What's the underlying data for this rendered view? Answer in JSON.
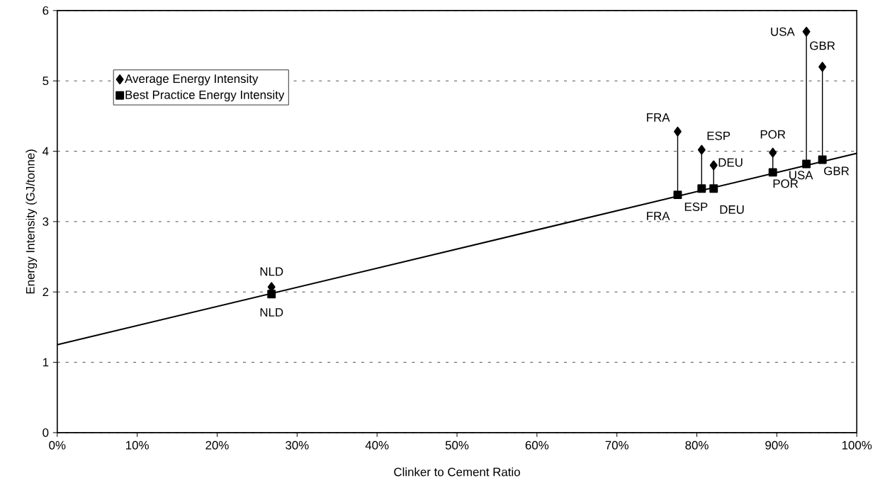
{
  "chart_data": {
    "type": "scatter",
    "xlabel": "Clinker to Cement Ratio",
    "ylabel": "Energy Intensity (GJ/tonne)",
    "xlim": [
      0,
      100
    ],
    "ylim": [
      0,
      6
    ],
    "xticks": [
      {
        "value": 0,
        "label": "0%"
      },
      {
        "value": 10,
        "label": "10%"
      },
      {
        "value": 20,
        "label": "20%"
      },
      {
        "value": 30,
        "label": "30%"
      },
      {
        "value": 40,
        "label": "40%"
      },
      {
        "value": 50,
        "label": "50%"
      },
      {
        "value": 60,
        "label": "60%"
      },
      {
        "value": 70,
        "label": "70%"
      },
      {
        "value": 80,
        "label": "80%"
      },
      {
        "value": 90,
        "label": "90%"
      },
      {
        "value": 100,
        "label": "100%"
      }
    ],
    "yticks": [
      0,
      1,
      2,
      3,
      4,
      5,
      6
    ],
    "grid": "y",
    "legend": "top left",
    "series": [
      {
        "name": "Average Energy Intensity",
        "color": "#000000",
        "marker": "diamond",
        "x": [
          26.8,
          77.6,
          80.6,
          82.1,
          89.5,
          93.7,
          95.7
        ],
        "values": [
          2.07,
          4.28,
          4.02,
          3.8,
          3.98,
          5.7,
          5.2
        ]
      },
      {
        "name": "Best Practice Energy Intensity",
        "color": "#000000",
        "marker": "square",
        "x": [
          26.8,
          77.6,
          80.6,
          82.1,
          89.5,
          93.7,
          95.7
        ],
        "values": [
          1.97,
          3.38,
          3.47,
          3.47,
          3.7,
          3.82,
          3.88
        ],
        "errors": [
          [
            1.97,
            2.07
          ],
          [
            3.38,
            4.28
          ],
          [
            3.47,
            4.02
          ],
          [
            3.47,
            3.8
          ],
          [
            3.7,
            3.98
          ],
          [
            3.82,
            5.7
          ],
          [
            3.88,
            5.2
          ]
        ]
      },
      {
        "type": "line",
        "color": "#000000",
        "marker": "none",
        "x": [
          0,
          100
        ],
        "values": [
          1.25,
          3.97
        ]
      }
    ],
    "annotations": [
      {
        "text": "NLD",
        "x": 26.8,
        "y": 2.07
      },
      {
        "text": "FRA",
        "x": 77.6,
        "y": 4.28
      },
      {
        "text": "ESP",
        "x": 80.6,
        "y": 4.02
      },
      {
        "text": "DEU",
        "x": 82.1,
        "y": 3.8
      },
      {
        "text": "POR",
        "x": 89.5,
        "y": 3.98
      },
      {
        "text": "USA",
        "x": 93.7,
        "y": 5.7
      },
      {
        "text": "GBR",
        "x": 95.7,
        "y": 5.2
      },
      {
        "text": "NLD",
        "x": 26.8,
        "y": 1.97
      },
      {
        "text": "FRA",
        "x": 77.6,
        "y": 3.38
      },
      {
        "text": "ESP",
        "x": 80.6,
        "y": 3.47
      },
      {
        "text": "DEU",
        "x": 82.1,
        "y": 3.47
      },
      {
        "text": "POR",
        "x": 89.5,
        "y": 3.7
      },
      {
        "text": "USA",
        "x": 93.7,
        "y": 3.82
      },
      {
        "text": "GBR",
        "x": 95.7,
        "y": 3.88
      }
    ]
  }
}
